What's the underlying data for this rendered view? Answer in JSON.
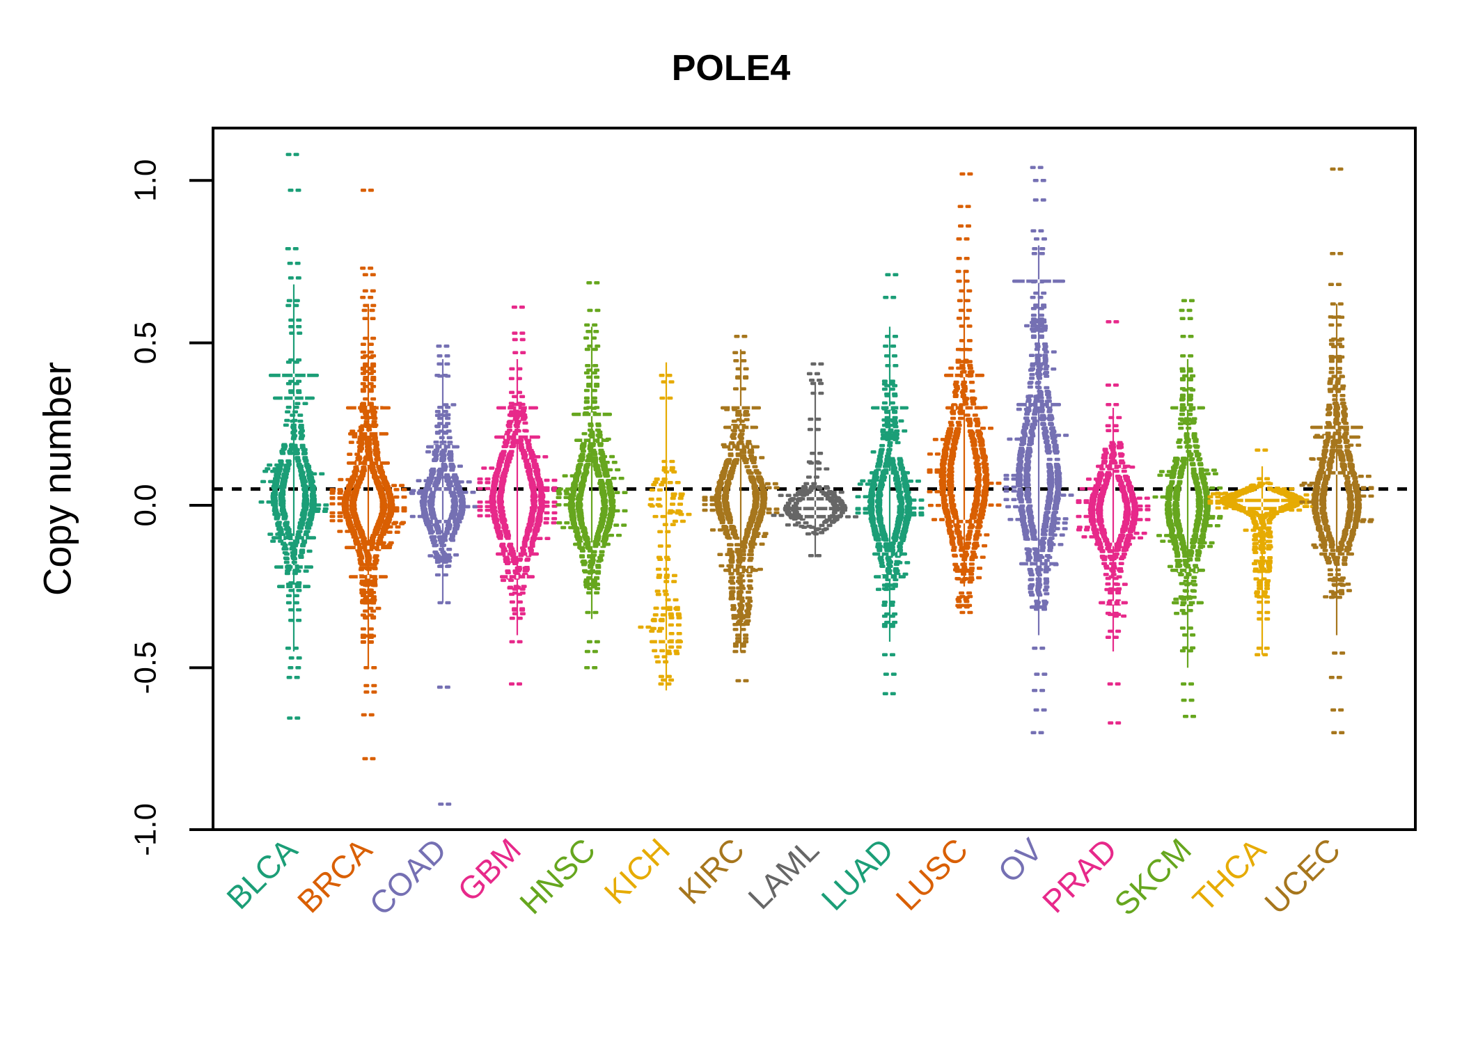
{
  "title": "POLE4",
  "axes": {
    "ylabel": "Copy number",
    "yticks": [
      {
        "label": "1.0",
        "value": 1.0
      },
      {
        "label": "0.5",
        "value": 0.5
      },
      {
        "label": "0.0",
        "value": 0.0
      },
      {
        "label": "-0.5",
        "value": -0.5
      },
      {
        "label": "-1.0",
        "value": -1.0
      }
    ],
    "ylim": [
      -1.0,
      1.16
    ],
    "grid": false,
    "frame_color": "#000000"
  },
  "reference_line": {
    "value": 0.05,
    "style": "dotted",
    "color": "#000000"
  },
  "chart_data": {
    "type": "violin",
    "title": "POLE4",
    "ylabel": "Copy number",
    "ytick_values": [
      1.0,
      0.5,
      0.0,
      -0.5,
      -1.0
    ],
    "reference_value": 0.05,
    "palette": "Dark2",
    "categories": [
      "BLCA",
      "BRCA",
      "COAD",
      "GBM",
      "HNSC",
      "KICH",
      "KIRC",
      "LAML",
      "LUAD",
      "LUSC",
      "OV",
      "PRAD",
      "SKCM",
      "THCA",
      "UCEC"
    ],
    "colors": [
      "#1B9E77",
      "#D95F02",
      "#7570B3",
      "#E7298A",
      "#66A61E",
      "#E6AB02",
      "#A6761D",
      "#666666",
      "#1B9E77",
      "#D95F02",
      "#7570B3",
      "#E7298A",
      "#66A61E",
      "#E6AB02",
      "#A6761D"
    ],
    "series": [
      {
        "label": "BLCA",
        "color": "#1B9E77",
        "n": 330,
        "median": 0.03,
        "range": [
          -0.66,
          1.08
        ],
        "body": [
          -0.42,
          0.52
        ],
        "components": [
          [
            0.05,
            0.16,
            0.5
          ],
          [
            0.02,
            0.08,
            0.5
          ]
        ],
        "clip": [
          -0.42,
          0.52
        ],
        "max_half": 24,
        "outliers": [
          1.08,
          0.97,
          0.79,
          0.745,
          0.7,
          0.63,
          0.615,
          0.57,
          0.55,
          0.53,
          -0.44,
          -0.47,
          -0.5,
          -0.53,
          -0.655
        ],
        "wide_rows": [
          [
            0.4,
            36
          ],
          [
            0.33,
            30
          ],
          [
            -0.1,
            32
          ],
          [
            -0.19,
            28
          ],
          [
            -0.25,
            24
          ]
        ],
        "line": [
          -0.45,
          0.68
        ]
      },
      {
        "label": "BRCA",
        "color": "#D95F02",
        "n": 700,
        "median": 0.01,
        "range": [
          -0.78,
          0.97
        ],
        "body": [
          -0.45,
          0.55
        ],
        "components": [
          [
            0.0,
            0.065,
            0.55
          ],
          [
            0.02,
            0.2,
            0.45
          ]
        ],
        "clip": [
          -0.45,
          0.55
        ],
        "max_half": 29,
        "outliers": [
          0.97,
          0.73,
          0.71,
          0.66,
          0.64,
          0.615,
          0.6,
          0.575,
          -0.5,
          -0.555,
          -0.575,
          -0.645,
          -0.78
        ],
        "wide_rows": [
          [
            0.3,
            32
          ],
          [
            0.22,
            29
          ],
          [
            0.13,
            31
          ],
          [
            -0.13,
            34
          ],
          [
            -0.22,
            28
          ]
        ],
        "line": [
          -0.5,
          0.62
        ]
      },
      {
        "label": "COAD",
        "color": "#7570B3",
        "n": 330,
        "median": 0.0,
        "range": [
          -0.92,
          0.49
        ],
        "body": [
          -0.24,
          0.42
        ],
        "components": [
          [
            0.0,
            0.055,
            0.5
          ],
          [
            0.03,
            0.14,
            0.5
          ]
        ],
        "clip": [
          -0.24,
          0.42
        ],
        "max_half": 24,
        "outliers": [
          0.49,
          0.46,
          0.435,
          0.4,
          -0.3,
          -0.56,
          -0.92
        ],
        "wide_rows": [
          [
            0.18,
            24
          ],
          [
            0.05,
            28
          ],
          [
            -0.05,
            26
          ]
        ],
        "line": [
          -0.3,
          0.45
        ]
      },
      {
        "label": "GBM",
        "color": "#E7298A",
        "n": 430,
        "median": 0.02,
        "range": [
          -0.55,
          0.61
        ],
        "body": [
          -0.35,
          0.38
        ],
        "components": [
          [
            0.02,
            0.1,
            0.65
          ],
          [
            0.0,
            0.19,
            0.35
          ]
        ],
        "clip": [
          -0.35,
          0.38
        ],
        "max_half": 31,
        "outliers": [
          0.61,
          0.53,
          0.51,
          0.47,
          0.42,
          0.39,
          -0.42,
          -0.55
        ],
        "wide_rows": [
          [
            0.3,
            30
          ],
          [
            0.21,
            33
          ],
          [
            -0.15,
            31
          ],
          [
            -0.22,
            25
          ]
        ],
        "line": [
          -0.4,
          0.45
        ]
      },
      {
        "label": "HNSC",
        "color": "#66A61E",
        "n": 400,
        "median": 0.0,
        "range": [
          -0.5,
          0.685
        ],
        "body": [
          -0.27,
          0.42
        ],
        "components": [
          [
            0.0,
            0.08,
            0.55
          ],
          [
            0.03,
            0.18,
            0.45
          ]
        ],
        "clip": [
          -0.27,
          0.42
        ],
        "max_half": 25,
        "outliers": [
          0.685,
          0.6,
          0.555,
          0.535,
          0.515,
          0.49,
          0.48,
          0.43,
          -0.33,
          -0.42,
          -0.45,
          -0.5
        ],
        "wide_rows": [
          [
            0.28,
            29
          ],
          [
            0.2,
            25
          ],
          [
            -0.12,
            27
          ]
        ],
        "line": [
          -0.35,
          0.55
        ]
      },
      {
        "label": "KICH",
        "color": "#E6AB02",
        "n": 62,
        "median": -0.2,
        "range": [
          -0.55,
          0.4
        ],
        "body": [
          -0.55,
          0.14
        ],
        "components": [
          [
            0.02,
            0.05,
            0.4
          ],
          [
            -0.4,
            0.065,
            0.4
          ],
          [
            -0.24,
            0.09,
            0.2
          ]
        ],
        "clip": [
          -0.55,
          0.14
        ],
        "max_half": 18,
        "outliers": [
          0.4,
          0.38,
          0.33,
          0.135,
          -0.55
        ],
        "wide_rows": [
          [
            -0.42,
            24
          ]
        ],
        "line": [
          -0.57,
          0.44
        ]
      },
      {
        "label": "KIRC",
        "color": "#A6761D",
        "n": 430,
        "median": 0.02,
        "range": [
          -0.54,
          0.52
        ],
        "body": [
          -0.44,
          0.42
        ],
        "components": [
          [
            0.02,
            0.075,
            0.55
          ],
          [
            0.06,
            0.17,
            0.28
          ],
          [
            -0.25,
            0.1,
            0.17
          ]
        ],
        "clip": [
          -0.44,
          0.42
        ],
        "max_half": 29,
        "outliers": [
          0.52,
          0.47,
          0.445,
          0.42,
          -0.45,
          -0.54
        ],
        "wide_rows": [
          [
            0.3,
            29
          ],
          [
            0.24,
            25
          ],
          [
            0.18,
            27
          ],
          [
            -0.2,
            25
          ]
        ],
        "line": [
          -0.45,
          0.48
        ]
      },
      {
        "label": "LAML",
        "color": "#666666",
        "n": 130,
        "median": -0.01,
        "range": [
          -0.155,
          0.435
        ],
        "body": [
          -0.13,
          0.3
        ],
        "components": [
          [
            -0.01,
            0.035,
            0.85
          ],
          [
            0.08,
            0.1,
            0.15
          ]
        ],
        "clip": [
          -0.13,
          0.3
        ],
        "max_half": 37,
        "outliers": [
          0.435,
          0.405,
          0.385,
          0.375,
          0.345,
          0.265,
          0.16,
          0.13,
          -0.155
        ],
        "wide_rows": [
          [
            -0.01,
            37
          ],
          [
            -0.035,
            33
          ],
          [
            0.02,
            27
          ]
        ],
        "line": [
          -0.16,
          0.38
        ]
      },
      {
        "label": "LUAD",
        "color": "#1B9E77",
        "n": 400,
        "median": 0.0,
        "range": [
          -0.58,
          0.71
        ],
        "body": [
          -0.38,
          0.42
        ],
        "components": [
          [
            0.0,
            0.08,
            0.55
          ],
          [
            0.0,
            0.18,
            0.45
          ]
        ],
        "clip": [
          -0.38,
          0.42
        ],
        "max_half": 23,
        "outliers": [
          0.71,
          0.64,
          0.52,
          0.49,
          0.46,
          0.43,
          -0.46,
          -0.52,
          -0.58
        ],
        "wide_rows": [
          [
            0.3,
            27
          ],
          [
            0.1,
            29
          ],
          [
            -0.15,
            25
          ],
          [
            -0.22,
            23
          ]
        ],
        "line": [
          -0.42,
          0.55
        ]
      },
      {
        "label": "LUSC",
        "color": "#D95F02",
        "n": 400,
        "median": 0.1,
        "range": [
          -0.33,
          1.02
        ],
        "body": [
          -0.32,
          0.58
        ],
        "components": [
          [
            0.08,
            0.12,
            0.6
          ],
          [
            0.1,
            0.26,
            0.4
          ]
        ],
        "clip": [
          -0.32,
          0.58
        ],
        "max_half": 27,
        "outliers": [
          1.02,
          0.92,
          0.86,
          0.82,
          0.76,
          0.72,
          0.69,
          0.66,
          0.63,
          0.6,
          -0.2,
          -0.27,
          -0.33
        ],
        "wide_rows": [
          [
            0.4,
            29
          ],
          [
            0.3,
            27
          ],
          [
            -0.05,
            25
          ]
        ],
        "line": [
          -0.25,
          0.72
        ]
      },
      {
        "label": "OV",
        "color": "#7570B3",
        "n": 460,
        "median": 0.08,
        "range": [
          -0.7,
          1.04
        ],
        "body": [
          -0.32,
          0.7
        ],
        "components": [
          [
            0.08,
            0.12,
            0.45
          ],
          [
            0.08,
            0.3,
            0.55
          ]
        ],
        "clip": [
          -0.32,
          0.7
        ],
        "max_half": 24,
        "outliers": [
          1.04,
          1.0,
          0.94,
          0.845,
          0.82,
          0.79,
          0.775,
          0.64,
          -0.44,
          -0.52,
          -0.57,
          -0.63,
          -0.7
        ],
        "wide_rows": [
          [
            0.69,
            38
          ],
          [
            0.31,
            32
          ],
          [
            -0.18,
            28
          ]
        ],
        "line": [
          -0.4,
          0.8
        ]
      },
      {
        "label": "PRAD",
        "color": "#E7298A",
        "n": 380,
        "median": 0.0,
        "range": [
          -0.67,
          0.565
        ],
        "body": [
          -0.45,
          0.22
        ],
        "components": [
          [
            -0.02,
            0.075,
            0.6
          ],
          [
            0.0,
            0.16,
            0.4
          ]
        ],
        "clip": [
          -0.45,
          0.22
        ],
        "max_half": 27,
        "outliers": [
          0.565,
          0.37,
          0.31,
          0.27,
          0.245,
          0.23,
          -0.55,
          -0.67
        ],
        "wide_rows": [
          [
            0.12,
            25
          ],
          [
            -0.12,
            27
          ],
          [
            -0.3,
            21
          ]
        ],
        "line": [
          -0.45,
          0.3
        ]
      },
      {
        "label": "SKCM",
        "color": "#66A61E",
        "n": 360,
        "median": 0.0,
        "range": [
          -0.65,
          0.63
        ],
        "body": [
          -0.52,
          0.42
        ],
        "components": [
          [
            0.0,
            0.09,
            0.55
          ],
          [
            0.0,
            0.2,
            0.45
          ]
        ],
        "clip": [
          -0.52,
          0.42
        ],
        "max_half": 24,
        "outliers": [
          0.63,
          0.6,
          0.575,
          0.52,
          0.46,
          0.42,
          -0.55,
          -0.6,
          -0.65
        ],
        "wide_rows": [
          [
            0.3,
            25
          ],
          [
            -0.2,
            25
          ],
          [
            -0.3,
            23
          ]
        ],
        "line": [
          -0.5,
          0.45
        ]
      },
      {
        "label": "THCA",
        "color": "#E6AB02",
        "n": 340,
        "median": 0.015,
        "range": [
          -0.46,
          0.17
        ],
        "body": [
          -0.3,
          0.12
        ],
        "components": [
          [
            0.015,
            0.022,
            0.75
          ],
          [
            -0.12,
            0.1,
            0.25
          ]
        ],
        "clip": [
          -0.3,
          0.12
        ],
        "max_half": 52,
        "outliers": [
          0.17,
          -0.33,
          -0.35,
          -0.44,
          -0.46
        ],
        "wide_rows": [
          [
            0.015,
            52
          ],
          [
            -0.01,
            44
          ]
        ],
        "line": [
          -0.46,
          0.12
        ]
      },
      {
        "label": "UCEC",
        "color": "#A6761D",
        "n": 420,
        "median": 0.01,
        "range": [
          -0.7,
          1.035
        ],
        "body": [
          -0.33,
          0.58
        ],
        "components": [
          [
            0.0,
            0.085,
            0.5
          ],
          [
            0.08,
            0.2,
            0.5
          ]
        ],
        "clip": [
          -0.33,
          0.58
        ],
        "max_half": 27,
        "outliers": [
          1.035,
          0.775,
          0.68,
          0.62,
          0.58,
          0.555,
          -0.455,
          -0.53,
          -0.63,
          -0.7
        ],
        "wide_rows": [
          [
            0.24,
            38
          ],
          [
            0.21,
            34
          ],
          [
            0.1,
            28
          ],
          [
            -0.15,
            25
          ]
        ],
        "line": [
          -0.4,
          0.62
        ]
      }
    ]
  }
}
